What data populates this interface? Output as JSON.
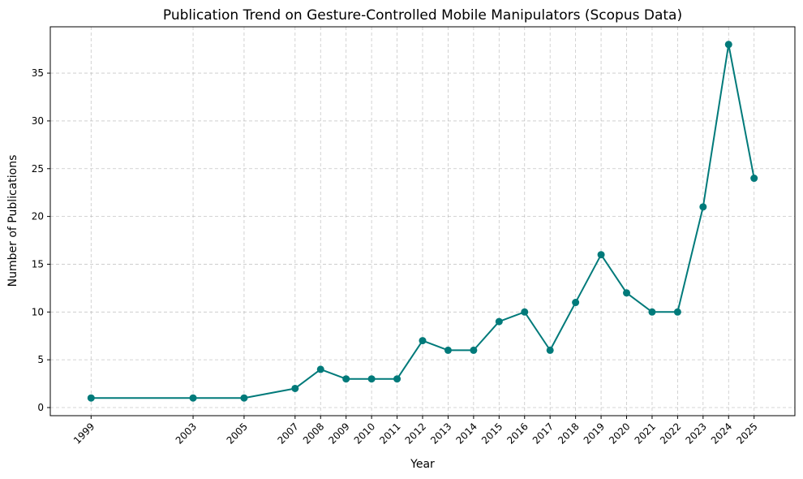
{
  "chart_data": {
    "type": "line",
    "title": "Publication Trend on Gesture-Controlled Mobile Manipulators (Scopus Data)",
    "xlabel": "Year",
    "ylabel": "Number of Publications",
    "x": [
      1999,
      2003,
      2005,
      2007,
      2008,
      2009,
      2010,
      2011,
      2012,
      2013,
      2014,
      2015,
      2016,
      2017,
      2018,
      2019,
      2020,
      2021,
      2022,
      2023,
      2024,
      2025
    ],
    "series": [
      {
        "name": "Publications",
        "values": [
          1,
          1,
          1,
          2,
          4,
          3,
          3,
          3,
          7,
          6,
          6,
          9,
          10,
          6,
          11,
          16,
          12,
          10,
          10,
          21,
          38,
          24
        ],
        "color": "#007a7a"
      }
    ],
    "xlim": [
      1997.4,
      2026.6
    ],
    "ylim": [
      -0.85,
      39.85
    ],
    "yticks": [
      0,
      5,
      10,
      15,
      20,
      25,
      30,
      35
    ],
    "xtick_labels": [
      "1999",
      "2003",
      "2005",
      "2007",
      "2008",
      "2009",
      "2010",
      "2011",
      "2012",
      "2013",
      "2014",
      "2015",
      "2016",
      "2017",
      "2018",
      "2019",
      "2020",
      "2021",
      "2022",
      "2023",
      "2024",
      "2025"
    ],
    "grid": true
  }
}
